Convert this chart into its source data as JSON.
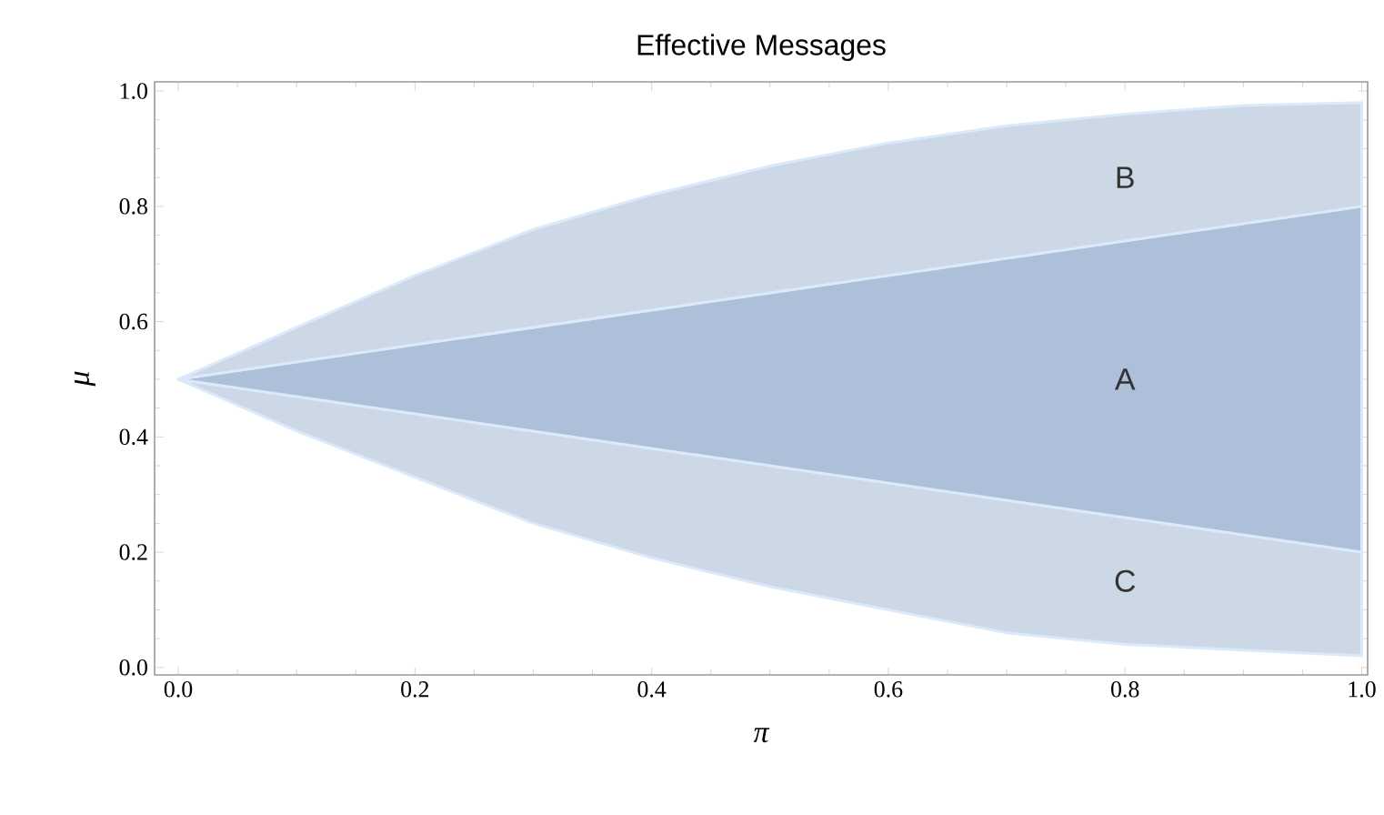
{
  "chart_data": {
    "type": "area",
    "stacked": true,
    "title": "Effective Messages",
    "xlabel": "π",
    "ylabel": "μ",
    "xlim": [
      -0.02,
      1.005
    ],
    "ylim": [
      -0.013,
      1.016
    ],
    "xticks": [
      {
        "value": 0,
        "label": "0.0"
      },
      {
        "value": 0.2,
        "label": "0.2"
      },
      {
        "value": 0.4,
        "label": "0.4"
      },
      {
        "value": 0.6,
        "label": "0.6"
      },
      {
        "value": 0.8,
        "label": "0.8"
      },
      {
        "value": 1,
        "label": "1.0"
      }
    ],
    "yticks": [
      {
        "value": 0,
        "label": "0.0"
      },
      {
        "value": 0.2,
        "label": "0.2"
      },
      {
        "value": 0.4,
        "label": "0.4"
      },
      {
        "value": 0.6,
        "label": "0.6"
      },
      {
        "value": 0.8,
        "label": "0.8"
      },
      {
        "value": 1,
        "label": "1.0"
      }
    ],
    "x": [
      0,
      0.1,
      0.2,
      0.3,
      0.4,
      0.5,
      0.6,
      0.7,
      0.8,
      0.9,
      1
    ],
    "series": [
      {
        "color": "#ffffff",
        "values": [
          0.5,
          0.41,
          0.33,
          0.25,
          0.19,
          0.14,
          0.1,
          0.06,
          0.04,
          0.03,
          0.02
        ]
      },
      {
        "name": "C",
        "color": "#cdd8e6",
        "values": [
          0,
          0.06,
          0.11,
          0.16,
          0.19,
          0.21,
          0.22,
          0.23,
          0.22,
          0.2,
          0.18
        ]
      },
      {
        "name": "A",
        "color": "#adbfd9",
        "values": [
          0,
          0.06,
          0.12,
          0.18,
          0.24,
          0.3,
          0.36,
          0.42,
          0.48,
          0.54,
          0.6
        ]
      },
      {
        "name": "B",
        "color": "#cdd8e6",
        "values": [
          0,
          0.06,
          0.12,
          0.17,
          0.2,
          0.22,
          0.23,
          0.23,
          0.22,
          0.205,
          0.18
        ]
      }
    ]
  }
}
